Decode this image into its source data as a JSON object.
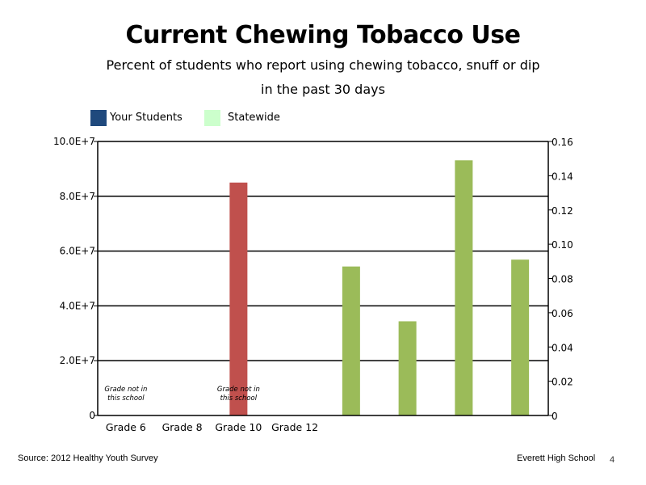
{
  "chart_data": {
    "type": "bar",
    "title": "Current Chewing Tobacco Use",
    "subtitle_lines": [
      "Percent of students who report using chewing tobacco, snuff or dip",
      "in the past 30 days"
    ],
    "legend": [
      {
        "name": "Your Students",
        "color": "#1f497d"
      },
      {
        "name": "Statewide",
        "color": "#ccffcc"
      }
    ],
    "legend_position": "top-left",
    "categories": [
      "Grade 6",
      "Grade 8",
      "Grade 10",
      "Grade 12"
    ],
    "left_axis": {
      "range": [
        0,
        100000000
      ],
      "ticks": [
        0,
        20000000,
        40000000,
        60000000,
        80000000,
        100000000
      ],
      "tick_labels": [
        "0",
        "2.0E+7",
        "4.0E+7",
        "6.0E+7",
        "8.0E+7",
        "10.0E+7"
      ],
      "gridlines": true
    },
    "right_axis": {
      "range": [
        0,
        0.16
      ],
      "ticks": [
        0,
        0.02,
        0.04,
        0.06,
        0.08,
        0.1,
        0.12,
        0.14,
        0.16
      ],
      "tick_labels": [
        "0",
        "0.02",
        "0.04",
        "0.06",
        "0.08",
        "0.10",
        "0.12",
        "0.14",
        "0.16"
      ]
    },
    "series": [
      {
        "axis": "left",
        "color": "#c0504d",
        "points": [
          {
            "slot": 3,
            "value": 85000000
          }
        ]
      },
      {
        "axis": "right",
        "color": "#9bbb59",
        "points": [
          {
            "slot": 5,
            "value": 0.087
          },
          {
            "slot": 6,
            "value": 0.055
          },
          {
            "slot": 7,
            "value": 0.149
          },
          {
            "slot": 8,
            "value": 0.091
          }
        ]
      }
    ],
    "slot_count": 8,
    "annotations": [
      {
        "slot": 1,
        "lines": [
          "Grade not in",
          "this school"
        ]
      },
      {
        "slot": 3,
        "lines": [
          "Grade not in",
          "this school"
        ]
      }
    ]
  },
  "footer": {
    "source": "Source: 2012 Healthy Youth Survey",
    "school": "Everett High School",
    "page_number": "4"
  }
}
